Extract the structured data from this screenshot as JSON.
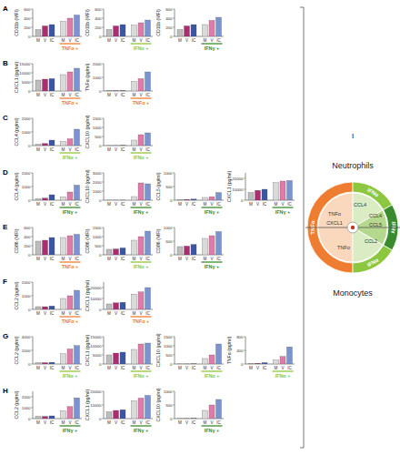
{
  "chart_data": [
    {
      "type": "bar",
      "annotations": [
        "A"
      ],
      "ylabel": "CD11b (MFI)",
      "xlabel": "TNFα +",
      "color": "#ee7d31",
      "categories": [
        "M",
        "V",
        "IC",
        "M",
        "V",
        "IC"
      ],
      "values": [
        150,
        230,
        260,
        330,
        400,
        470
      ],
      "colors": [
        "#bdbdbd",
        "#b3296f",
        "#3a56a5",
        "#dadada",
        "#e07aa8",
        "#7b93cf"
      ],
      "ylim": [
        0,
        600
      ],
      "yticks": [
        0,
        200,
        400,
        600
      ]
    },
    {
      "type": "bar",
      "ylabel": "CD11b (MFI)",
      "xlabel": "IFNα +",
      "color": "#8dc63f",
      "categories": [
        "M",
        "V",
        "IC",
        "M",
        "V",
        "IC"
      ],
      "values": [
        150,
        230,
        260,
        250,
        300,
        360
      ],
      "colors": [
        "#bdbdbd",
        "#b3296f",
        "#3a56a5",
        "#dadada",
        "#e07aa8",
        "#7b93cf"
      ],
      "ylim": [
        0,
        600
      ],
      "yticks": [
        0,
        200,
        400,
        600
      ]
    },
    {
      "type": "bar",
      "ylabel": "CD11b (MFI)",
      "xlabel": "IFNγ +",
      "color": "#3a8a2e",
      "categories": [
        "M",
        "V",
        "IC",
        "M",
        "V",
        "IC"
      ],
      "values": [
        150,
        230,
        260,
        260,
        350,
        420
      ],
      "colors": [
        "#bdbdbd",
        "#b3296f",
        "#3a56a5",
        "#dadada",
        "#e07aa8",
        "#7b93cf"
      ],
      "ylim": [
        0,
        600
      ],
      "yticks": [
        0,
        200,
        400,
        600
      ]
    },
    {
      "type": "bar",
      "annotations": [
        "B"
      ],
      "ylabel": "CXCL1 (pg/ml)",
      "xlabel": "TNFα +",
      "color": "#ee7d31",
      "categories": [
        "M",
        "V",
        "IC",
        "M",
        "V",
        "IC"
      ],
      "values": [
        6000,
        6500,
        6800,
        9000,
        10500,
        12500
      ],
      "colors": [
        "#bdbdbd",
        "#b3296f",
        "#3a56a5",
        "#dadada",
        "#e07aa8",
        "#7b93cf"
      ],
      "ylim": [
        0,
        15000
      ],
      "yticks": [
        0,
        5000,
        10000,
        15000
      ]
    },
    {
      "type": "bar",
      "ylabel": "TNFα (pg/ml)",
      "xlabel": "TNFα +",
      "color": "#ee7d31",
      "categories": [
        "M",
        "V",
        "IC",
        "M",
        "V",
        "IC"
      ],
      "values": [
        20,
        20,
        30,
        700,
        900,
        1400
      ],
      "colors": [
        "#bdbdbd",
        "#b3296f",
        "#3a56a5",
        "#dadada",
        "#e07aa8",
        "#7b93cf"
      ],
      "ylim": [
        0,
        2000
      ],
      "yticks": [
        0,
        1000,
        2000
      ]
    },
    {
      "type": "bar",
      "annotations": [
        "C"
      ],
      "ylabel": "CCL4 (pg/ml)",
      "xlabel": "IFNα +",
      "color": "#8dc63f",
      "categories": [
        "M",
        "V",
        "IC",
        "M",
        "V",
        "IC"
      ],
      "values": [
        100,
        150,
        400,
        300,
        500,
        1200
      ],
      "colors": [
        "#bdbdbd",
        "#b3296f",
        "#3a56a5",
        "#dadada",
        "#e07aa8",
        "#7b93cf"
      ],
      "ylim": [
        0,
        2000
      ],
      "yticks": [
        0,
        1000,
        2000
      ]
    },
    {
      "type": "bar",
      "ylabel": "CXCL10 (pg/ml)",
      "xlabel": "IFNα +",
      "color": "#8dc63f",
      "categories": [
        "M",
        "V",
        "IC",
        "M",
        "V",
        "IC"
      ],
      "values": [
        5,
        5,
        10,
        300,
        600,
        700
      ],
      "colors": [
        "#bdbdbd",
        "#b3296f",
        "#3a56a5",
        "#dadada",
        "#e07aa8",
        "#7b93cf"
      ],
      "ylim": [
        0,
        1500
      ],
      "yticks": [
        0,
        500,
        1000,
        1500
      ]
    },
    {
      "type": "bar",
      "annotations": [
        "D"
      ],
      "ylabel": "CCL4 (pg/ml)",
      "xlabel": "IFNγ +",
      "color": "#3a8a2e",
      "categories": [
        "M",
        "V",
        "IC",
        "M",
        "V",
        "IC"
      ],
      "values": [
        100,
        150,
        400,
        250,
        600,
        1100
      ],
      "colors": [
        "#bdbdbd",
        "#b3296f",
        "#3a56a5",
        "#dadada",
        "#e07aa8",
        "#7b93cf"
      ],
      "ylim": [
        0,
        2000
      ],
      "yticks": [
        0,
        1000,
        2000
      ]
    },
    {
      "type": "bar",
      "ylabel": "CXCL10 (pg/ml)",
      "xlabel": "IFNγ +",
      "color": "#3a8a2e",
      "categories": [
        "M",
        "V",
        "IC",
        "M",
        "V",
        "IC"
      ],
      "values": [
        5,
        5,
        10,
        400,
        1900,
        1800
      ],
      "colors": [
        "#bdbdbd",
        "#b3296f",
        "#3a56a5",
        "#dadada",
        "#e07aa8",
        "#7b93cf"
      ],
      "ylim": [
        0,
        3000
      ],
      "yticks": [
        0,
        1000,
        2000,
        3000
      ]
    },
    {
      "type": "bar",
      "ylabel": "CCL5 (pg/ml)",
      "xlabel": "IFNγ +",
      "color": "#3a8a2e",
      "categories": [
        "M",
        "V",
        "IC",
        "M",
        "V",
        "IC"
      ],
      "values": [
        20,
        30,
        40,
        100,
        130,
        280
      ],
      "colors": [
        "#bdbdbd",
        "#b3296f",
        "#3a56a5",
        "#dadada",
        "#e07aa8",
        "#7b93cf"
      ],
      "ylim": [
        0,
        1000
      ],
      "yticks": [
        0,
        500,
        1000
      ]
    },
    {
      "type": "bar",
      "ylabel": "CXCL1 (pg/ml)",
      "xlabel": "IFNγ +",
      "color": "#3a8a2e",
      "categories": [
        "M",
        "V",
        "IC",
        "M",
        "V",
        "IC"
      ],
      "values": [
        7000,
        9000,
        10000,
        16000,
        17500,
        18000
      ],
      "colors": [
        "#bdbdbd",
        "#b3296f",
        "#3a56a5",
        "#dadada",
        "#e07aa8",
        "#7b93cf"
      ],
      "ylim": [
        0,
        25000
      ],
      "yticks": [
        0,
        10000,
        20000
      ]
    },
    {
      "type": "bar",
      "annotations": [
        "E"
      ],
      "ylabel": "CD86 (MFI)",
      "xlabel": "TNFα +",
      "color": "#ee7d31",
      "categories": [
        "M",
        "V",
        "IC",
        "M",
        "V",
        "IC"
      ],
      "values": [
        300,
        320,
        380,
        380,
        420,
        450
      ],
      "colors": [
        "#bdbdbd",
        "#b3296f",
        "#3a56a5",
        "#dadada",
        "#e07aa8",
        "#7b93cf"
      ],
      "ylim": [
        0,
        600
      ],
      "yticks": [
        0,
        200,
        400,
        600
      ]
    },
    {
      "type": "bar",
      "ylabel": "CD86 (MFI)",
      "xlabel": "IFNα +",
      "color": "#8dc63f",
      "categories": [
        "M",
        "V",
        "IC",
        "M",
        "V",
        "IC"
      ],
      "values": [
        300,
        320,
        380,
        800,
        1000,
        1300
      ],
      "colors": [
        "#bdbdbd",
        "#b3296f",
        "#3a56a5",
        "#dadada",
        "#e07aa8",
        "#7b93cf"
      ],
      "ylim": [
        0,
        1500
      ],
      "yticks": [
        0,
        500,
        1000,
        1500
      ]
    },
    {
      "type": "bar",
      "ylabel": "CD86 (MFI)",
      "xlabel": "IFNγ +",
      "color": "#3a8a2e",
      "categories": [
        "M",
        "V",
        "IC",
        "M",
        "V",
        "IC"
      ],
      "values": [
        300,
        320,
        380,
        600,
        700,
        850
      ],
      "colors": [
        "#bdbdbd",
        "#b3296f",
        "#3a56a5",
        "#dadada",
        "#e07aa8",
        "#7b93cf"
      ],
      "ylim": [
        0,
        1000
      ],
      "yticks": [
        0,
        500,
        1000
      ]
    },
    {
      "type": "bar",
      "annotations": [
        "F"
      ],
      "ylabel": "CCL2 (pg/ml)",
      "xlabel": "TNFα +",
      "color": "#ee7d31",
      "categories": [
        "M",
        "V",
        "IC",
        "M",
        "V",
        "IC"
      ],
      "values": [
        200,
        200,
        250,
        800,
        1000,
        1400
      ],
      "colors": [
        "#bdbdbd",
        "#b3296f",
        "#3a56a5",
        "#dadada",
        "#e07aa8",
        "#7b93cf"
      ],
      "ylim": [
        0,
        2000
      ],
      "yticks": [
        0,
        1000,
        2000
      ]
    },
    {
      "type": "bar",
      "ylabel": "CXCL1 (pg/ml)",
      "xlabel": "TNFα +",
      "color": "#ee7d31",
      "categories": [
        "M",
        "V",
        "IC",
        "M",
        "V",
        "IC"
      ],
      "values": [
        5000,
        6000,
        6500,
        14000,
        16000,
        20000
      ],
      "colors": [
        "#bdbdbd",
        "#b3296f",
        "#3a56a5",
        "#dadada",
        "#e07aa8",
        "#7b93cf"
      ],
      "ylim": [
        0,
        25000
      ],
      "yticks": [
        0,
        10000,
        20000
      ]
    },
    {
      "type": "bar",
      "annotations": [
        "G"
      ],
      "ylabel": "CCL2 (pg/ml)",
      "xlabel": "IFNα +",
      "color": "#8dc63f",
      "categories": [
        "M",
        "V",
        "IC",
        "M",
        "V",
        "IC"
      ],
      "values": [
        200,
        200,
        250,
        1500,
        2200,
        2700
      ],
      "colors": [
        "#bdbdbd",
        "#b3296f",
        "#3a56a5",
        "#dadada",
        "#e07aa8",
        "#7b93cf"
      ],
      "ylim": [
        0,
        4000
      ],
      "yticks": [
        0,
        2000,
        4000
      ]
    },
    {
      "type": "bar",
      "ylabel": "CXCL1 (pg/ml)",
      "xlabel": "IFNα +",
      "color": "#8dc63f",
      "categories": [
        "M",
        "V",
        "IC",
        "M",
        "V",
        "IC"
      ],
      "values": [
        5000,
        6000,
        6500,
        8000,
        11000,
        11500
      ],
      "colors": [
        "#bdbdbd",
        "#b3296f",
        "#3a56a5",
        "#dadada",
        "#e07aa8",
        "#7b93cf"
      ],
      "ylim": [
        0,
        15000
      ],
      "yticks": [
        0,
        5000,
        10000,
        15000
      ]
    },
    {
      "type": "bar",
      "ylabel": "CXCL10 (pg/ml)",
      "xlabel": "IFNα +",
      "color": "#8dc63f",
      "categories": [
        "M",
        "V",
        "IC",
        "M",
        "V",
        "IC"
      ],
      "values": [
        5,
        5,
        10,
        300,
        500,
        1100
      ],
      "colors": [
        "#bdbdbd",
        "#b3296f",
        "#3a56a5",
        "#dadada",
        "#e07aa8",
        "#7b93cf"
      ],
      "ylim": [
        0,
        1500
      ],
      "yticks": [
        0,
        500,
        1000,
        1500
      ]
    },
    {
      "type": "bar",
      "ylabel": "TNFα (pg/ml)",
      "xlabel": "IFNα +",
      "color": "#8dc63f",
      "categories": [
        "M",
        "V",
        "IC",
        "M",
        "V",
        "IC"
      ],
      "values": [
        20,
        20,
        40,
        120,
        220,
        500
      ],
      "colors": [
        "#bdbdbd",
        "#b3296f",
        "#3a56a5",
        "#dadada",
        "#e07aa8",
        "#7b93cf"
      ],
      "ylim": [
        0,
        800
      ],
      "yticks": [
        0,
        400,
        800
      ]
    },
    {
      "type": "bar",
      "annotations": [
        "H"
      ],
      "ylabel": "CCL2 (pg/ml)",
      "xlabel": "IFNγ +",
      "color": "#3a8a2e",
      "categories": [
        "M",
        "V",
        "IC",
        "M",
        "V",
        "IC"
      ],
      "values": [
        200,
        200,
        250,
        700,
        1100,
        1900
      ],
      "colors": [
        "#bdbdbd",
        "#b3296f",
        "#3a56a5",
        "#dadada",
        "#e07aa8",
        "#7b93cf"
      ],
      "ylim": [
        0,
        2500
      ],
      "yticks": [
        0,
        1000,
        2000
      ]
    },
    {
      "type": "bar",
      "ylabel": "CXCL1 (pg/ml)",
      "xlabel": "IFNγ +",
      "color": "#3a8a2e",
      "categories": [
        "M",
        "V",
        "IC",
        "M",
        "V",
        "IC"
      ],
      "values": [
        5000,
        6000,
        6500,
        13000,
        15000,
        17000
      ],
      "colors": [
        "#bdbdbd",
        "#b3296f",
        "#3a56a5",
        "#dadada",
        "#e07aa8",
        "#7b93cf"
      ],
      "ylim": [
        0,
        20000
      ],
      "yticks": [
        0,
        10000,
        20000
      ]
    },
    {
      "type": "bar",
      "ylabel": "CXCL10 (pg/ml)",
      "xlabel": "IFNγ +",
      "color": "#3a8a2e",
      "categories": [
        "M",
        "V",
        "IC",
        "M",
        "V",
        "IC"
      ],
      "values": [
        5,
        5,
        10,
        300,
        500,
        700
      ],
      "colors": [
        "#bdbdbd",
        "#b3296f",
        "#3a56a5",
        "#dadada",
        "#e07aa8",
        "#7b93cf"
      ],
      "ylim": [
        0,
        1000
      ],
      "yticks": [
        0,
        500,
        1000
      ]
    }
  ],
  "diagram": {
    "label": "I",
    "neutrophils": "Neutrophils",
    "monocytes": "Monocytes",
    "outer": [
      {
        "label": "TNFα",
        "color": "#ee7d31"
      },
      {
        "label": "IFNα",
        "color": "#8dc63f"
      },
      {
        "label": "IFNγ",
        "color": "#3a8a2e"
      },
      {
        "label": "IFNα",
        "color": "#8dc63f"
      }
    ],
    "inner": [
      "TNFα",
      "CXCL1",
      "CCL4",
      "CCL4",
      "CCL5",
      "CCL2",
      "TNFα"
    ]
  }
}
